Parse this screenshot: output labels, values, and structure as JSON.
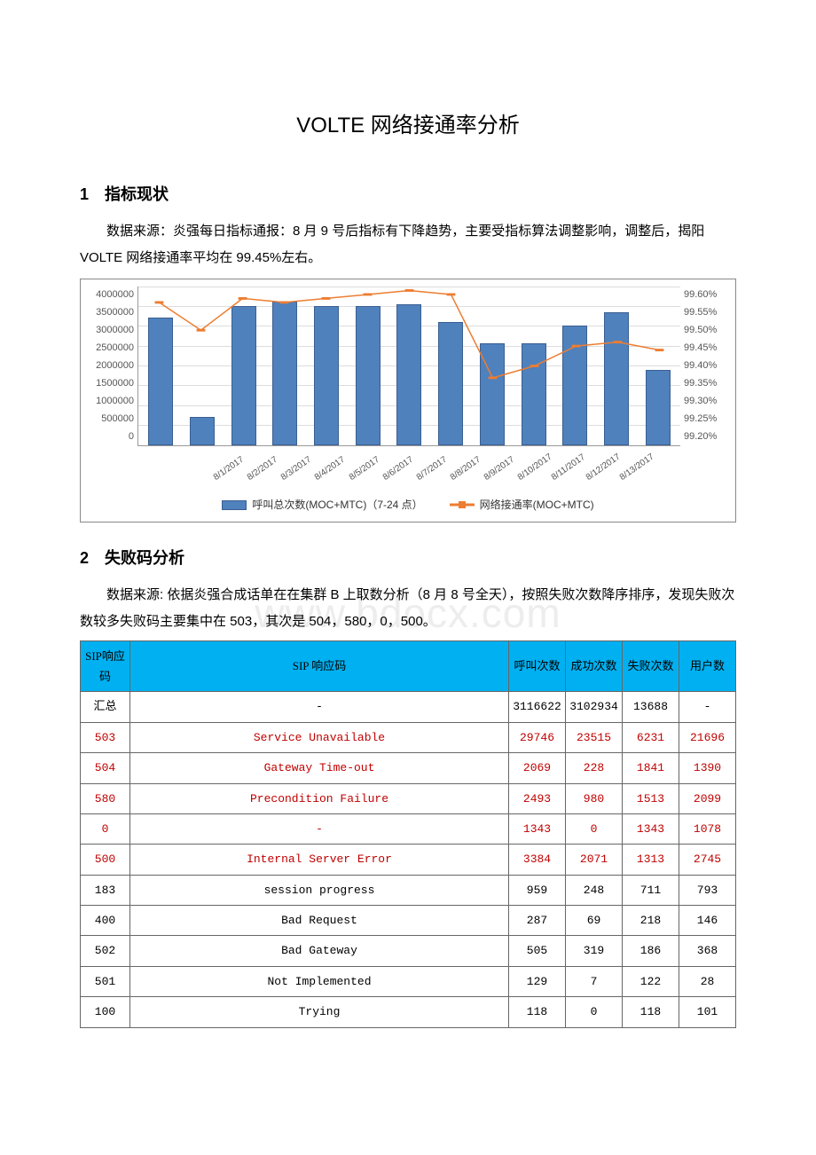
{
  "watermark": "www.bdocx.com",
  "title": "VOLTE 网络接通率分析",
  "s1": {
    "num": "1",
    "heading": "指标现状",
    "para": "数据来源：炎强每日指标通报：8 月 9 号后指标有下降趋势，主要受指标算法调整影响，调整后，揭阳 VOLTE 网络接通率平均在 99.45%左右。"
  },
  "chart": {
    "type": "bar+line",
    "bar_color": "#4f81bd",
    "bar_border": "#3a5f91",
    "line_color": "#ed7d31",
    "marker_size": 7,
    "grid_color": "#dddddd",
    "background_color": "#ffffff",
    "y_left": {
      "min": 0,
      "max": 4000000,
      "step": 500000,
      "ticks": [
        "4000000",
        "3500000",
        "3000000",
        "2500000",
        "2000000",
        "1500000",
        "1000000",
        "500000",
        "0"
      ]
    },
    "y_right": {
      "min": 99.2,
      "max": 99.6,
      "step": 0.05,
      "ticks": [
        "99.60%",
        "99.55%",
        "99.50%",
        "99.45%",
        "99.40%",
        "99.35%",
        "99.30%",
        "99.25%",
        "99.20%"
      ]
    },
    "categories": [
      "8/1/2017",
      "8/2/2017",
      "8/3/2017",
      "8/4/2017",
      "8/5/2017",
      "8/6/2017",
      "8/7/2017",
      "8/8/2017",
      "8/9/2017",
      "8/10/2017",
      "8/11/2017",
      "8/12/2017",
      "8/13/2017"
    ],
    "bar_values": [
      3200000,
      700000,
      3500000,
      3600000,
      3500000,
      3500000,
      3550000,
      3100000,
      2550000,
      2550000,
      3000000,
      3350000,
      1900000
    ],
    "line_values": [
      99.56,
      99.49,
      99.57,
      99.56,
      99.57,
      99.58,
      99.59,
      99.58,
      99.37,
      99.4,
      99.45,
      99.46,
      99.44
    ],
    "legend": {
      "bar": "呼叫总次数(MOC+MTC)（7-24 点）",
      "line": "网络接通率(MOC+MTC)"
    }
  },
  "s2": {
    "num": "2",
    "heading": "失败码分析",
    "para": "数据来源: 依据炎强合成话单在在集群 B 上取数分析（8 月 8 号全天），按照失败次数降序排序，发现失败次数较多失败码主要集中在 503，其次是 504，580，0，500。"
  },
  "table": {
    "columns": [
      "SIP响应码",
      "SIP 响应码",
      "呼叫次数",
      "成功次数",
      "失败次数",
      "用户数"
    ],
    "rows": [
      {
        "red": false,
        "c": [
          "汇总",
          "-",
          "3116622",
          "3102934",
          "13688",
          "-"
        ]
      },
      {
        "red": true,
        "c": [
          "503",
          "Service Unavailable",
          "29746",
          "23515",
          "6231",
          "21696"
        ]
      },
      {
        "red": true,
        "c": [
          "504",
          "Gateway Time-out",
          "2069",
          "228",
          "1841",
          "1390"
        ]
      },
      {
        "red": true,
        "c": [
          "580",
          "Precondition Failure",
          "2493",
          "980",
          "1513",
          "2099"
        ]
      },
      {
        "red": true,
        "c": [
          "0",
          "-",
          "1343",
          "0",
          "1343",
          "1078"
        ]
      },
      {
        "red": true,
        "c": [
          "500",
          "Internal Server Error",
          "3384",
          "2071",
          "1313",
          "2745"
        ]
      },
      {
        "red": false,
        "c": [
          "183",
          "session progress",
          "959",
          "248",
          "711",
          "793"
        ]
      },
      {
        "red": false,
        "c": [
          "400",
          "Bad Request",
          "287",
          "69",
          "218",
          "146"
        ]
      },
      {
        "red": false,
        "c": [
          "502",
          "Bad Gateway",
          "505",
          "319",
          "186",
          "368"
        ]
      },
      {
        "red": false,
        "c": [
          "501",
          "Not Implemented",
          "129",
          "7",
          "122",
          "28"
        ]
      },
      {
        "red": false,
        "c": [
          "100",
          "Trying",
          "118",
          "0",
          "118",
          "101"
        ]
      }
    ]
  }
}
